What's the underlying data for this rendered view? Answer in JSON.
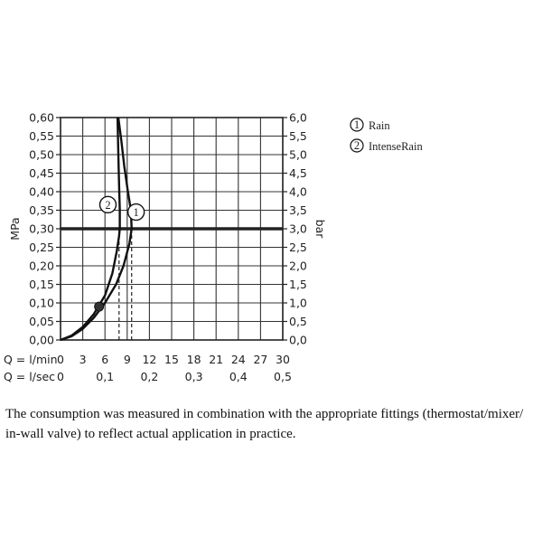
{
  "chart_data": {
    "type": "line",
    "left_axis": {
      "label": "MPa",
      "range": [
        0,
        0.6
      ],
      "ticks": [
        "0,00",
        "0,05",
        "0,10",
        "0,15",
        "0,20",
        "0,25",
        "0,30",
        "0,35",
        "0,40",
        "0,45",
        "0,50",
        "0,55",
        "0,60"
      ]
    },
    "right_axis": {
      "label": "bar",
      "range": [
        0,
        6.0
      ],
      "ticks": [
        "0,0",
        "0,5",
        "1,0",
        "1,5",
        "2,0",
        "2,5",
        "3,0",
        "3,5",
        "4,0",
        "4,5",
        "5,0",
        "5,5",
        "6,0"
      ]
    },
    "x_axis_primary": {
      "label": "Q = l/min",
      "range": [
        0,
        30
      ],
      "ticks": [
        "0",
        "3",
        "6",
        "9",
        "12",
        "15",
        "18",
        "21",
        "24",
        "27",
        "30"
      ]
    },
    "x_axis_secondary": {
      "label": "Q = l/sec",
      "ticks": [
        {
          "label": "0",
          "lmin": 0
        },
        {
          "label": "0,1",
          "lmin": 6
        },
        {
          "label": "0,2",
          "lmin": 12
        },
        {
          "label": "0,3",
          "lmin": 18
        },
        {
          "label": "0,4",
          "lmin": 24
        },
        {
          "label": "0,5",
          "lmin": 30
        }
      ]
    },
    "grid": true,
    "reference_line": {
      "y": 0.3
    },
    "marker_point": {
      "x": 5.2,
      "y": 0.09
    },
    "series": [
      {
        "name": "Rain",
        "marker": "1",
        "x": [
          0,
          1.5,
          3,
          4.5,
          6,
          7.5,
          8.5,
          9.3,
          9.6,
          9.5,
          9.1,
          8.6,
          8.2,
          7.8
        ],
        "y": [
          0,
          0.01,
          0.03,
          0.06,
          0.1,
          0.15,
          0.2,
          0.26,
          0.3,
          0.35,
          0.4,
          0.47,
          0.54,
          0.6
        ],
        "dashed_x": 9.6,
        "label_at": {
          "x": 10.2,
          "y": 0.345
        }
      },
      {
        "name": "IntenseRain",
        "marker": "2",
        "x": [
          0,
          1.5,
          3,
          4.5,
          6,
          7,
          7.6,
          7.9,
          8.0,
          8.0,
          7.9,
          7.8,
          7.7
        ],
        "y": [
          0,
          0.012,
          0.035,
          0.07,
          0.12,
          0.18,
          0.24,
          0.28,
          0.3,
          0.35,
          0.42,
          0.5,
          0.6
        ],
        "dashed_x": 7.9,
        "label_at": {
          "x": 6.4,
          "y": 0.365
        }
      }
    ],
    "legend": {
      "placement": "right",
      "entries": [
        {
          "marker": "1",
          "name": "Rain"
        },
        {
          "marker": "2",
          "name": "IntenseRain"
        }
      ]
    }
  },
  "caption": "The consumption was measured in combination with the appropriate fittings (thermostat/mixer/ in-wall valve) to reflect actual application in practice."
}
